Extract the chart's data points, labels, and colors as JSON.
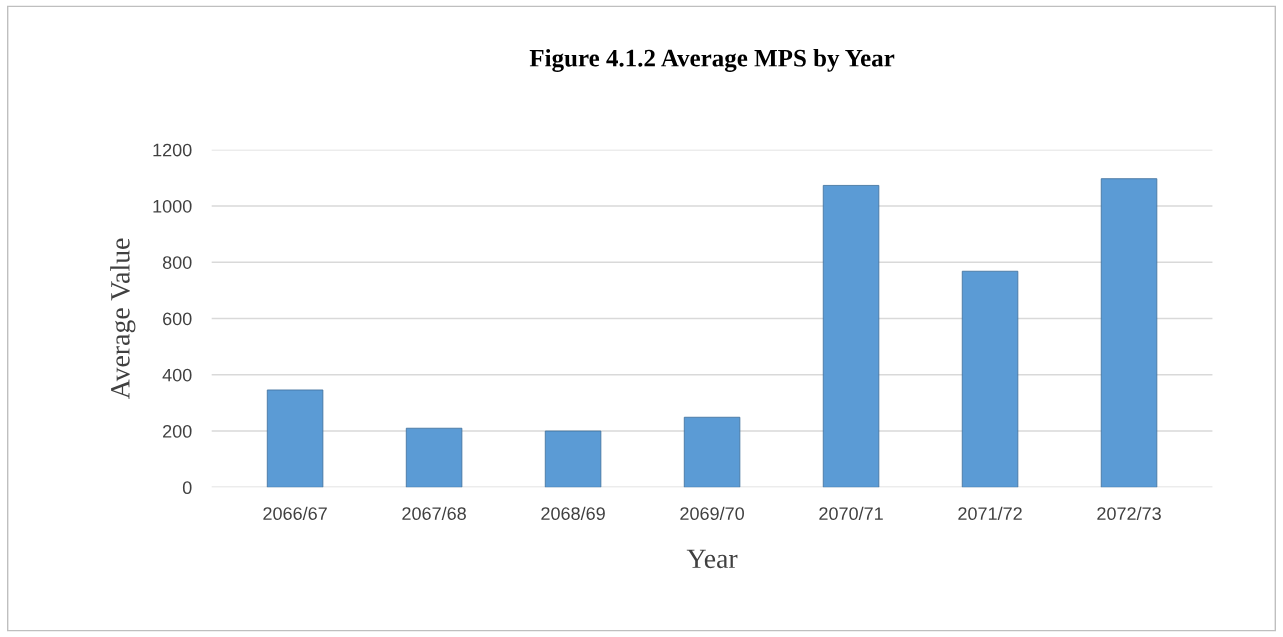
{
  "chart_data": {
    "type": "bar",
    "title": "Figure 4.1.2 Average MPS by Year",
    "xlabel": "Year",
    "ylabel": "Average Value",
    "categories": [
      "2066/67",
      "2067/68",
      "2068/69",
      "2069/70",
      "2070/71",
      "2071/72",
      "2072/73"
    ],
    "values": [
      346,
      210,
      200,
      249,
      1073,
      768,
      1097
    ],
    "color": "#5b9bd5",
    "ylim": [
      0,
      1200
    ],
    "yticks": [
      0,
      200,
      400,
      600,
      800,
      1000,
      1200
    ],
    "grid": "y"
  }
}
